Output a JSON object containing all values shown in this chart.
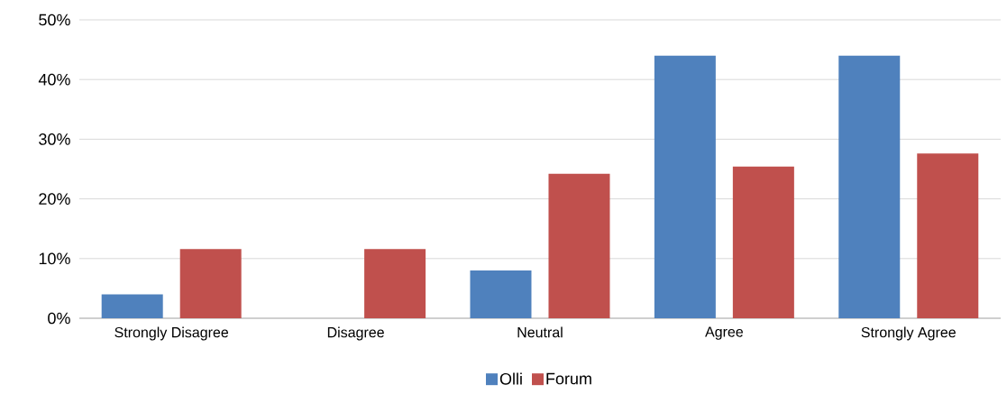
{
  "chart_data": {
    "type": "bar",
    "categories": [
      "Strongly Disagree",
      "Disagree",
      "Neutral",
      "Agree",
      "Strongly Agree"
    ],
    "series": [
      {
        "name": "Olli",
        "color": "#4f81bd",
        "values": [
          4,
          0,
          8,
          44,
          44
        ]
      },
      {
        "name": "Forum",
        "color": "#c0504d",
        "values": [
          11.6,
          11.6,
          24.2,
          25.4,
          27.6
        ]
      }
    ],
    "ylim": [
      0,
      50
    ],
    "yticks": [
      {
        "value": 0,
        "label": "0%"
      },
      {
        "value": 10,
        "label": "10%"
      },
      {
        "value": 20,
        "label": "20%"
      },
      {
        "value": 30,
        "label": "30%"
      },
      {
        "value": 40,
        "label": "40%"
      },
      {
        "value": 50,
        "label": "50%"
      }
    ],
    "grid": "y",
    "legend": "bottom"
  }
}
